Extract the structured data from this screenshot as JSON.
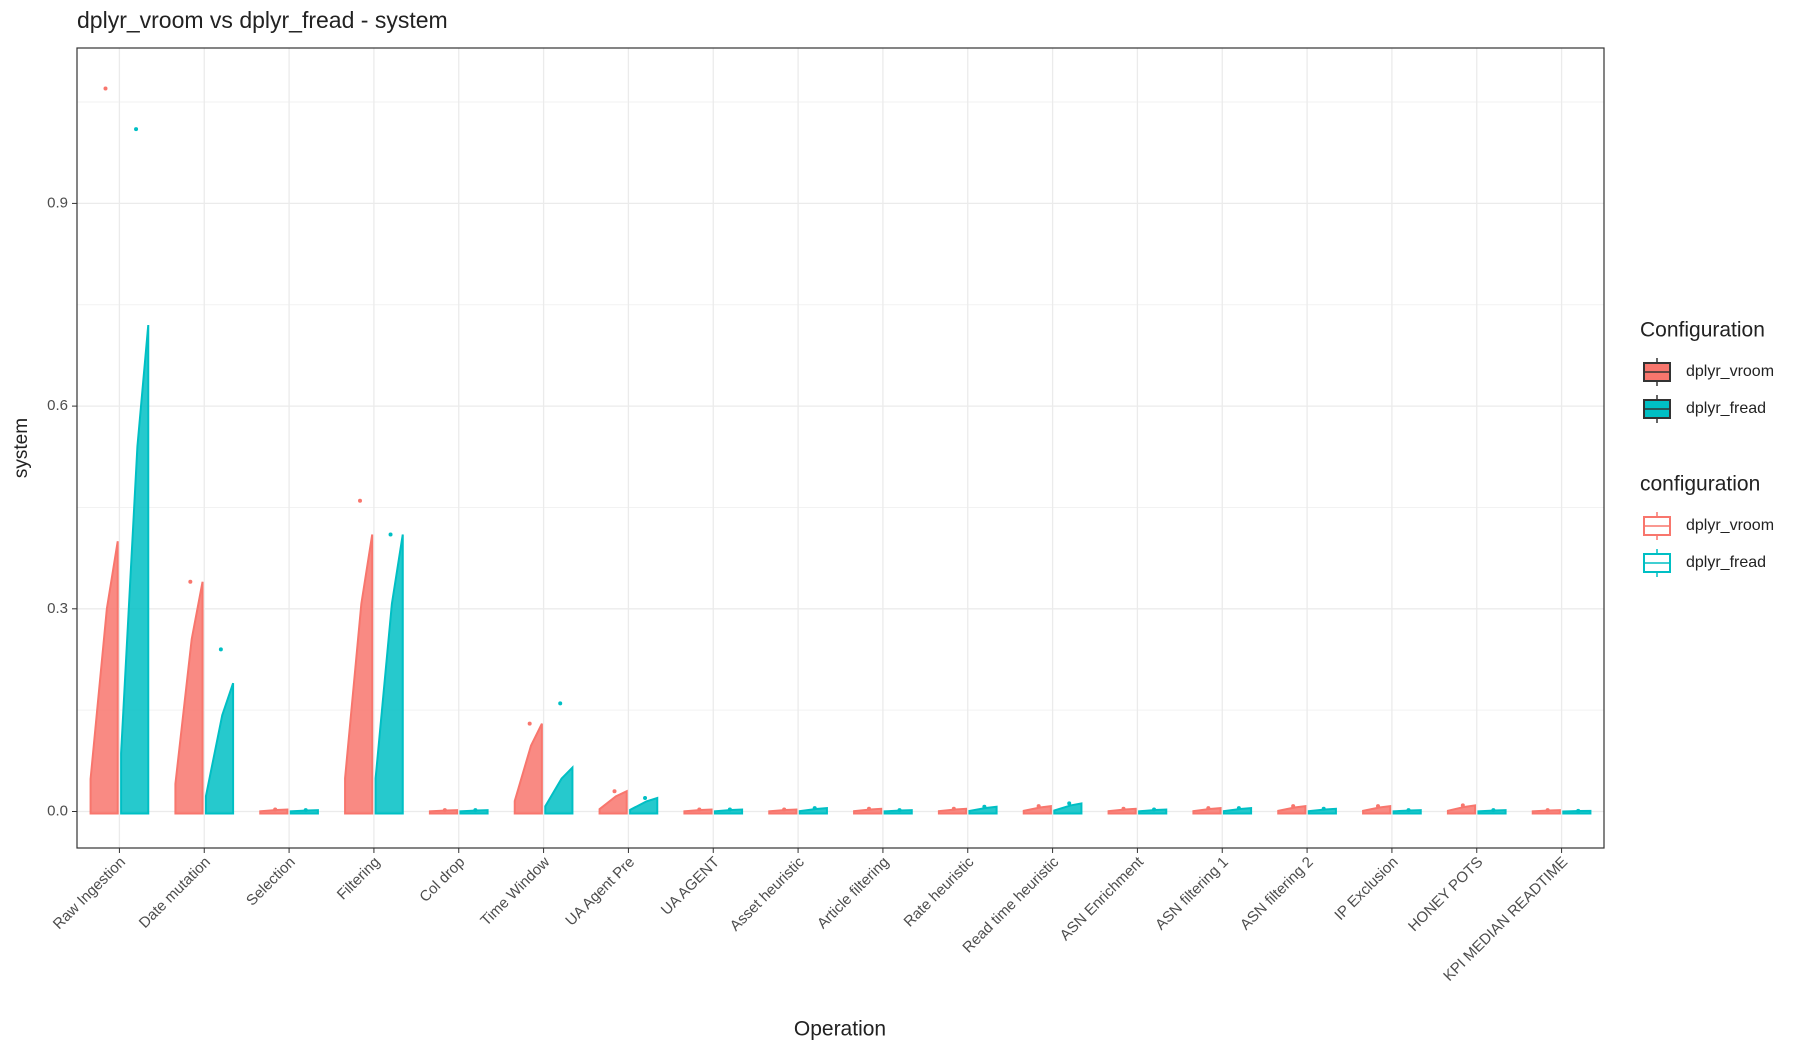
{
  "chart_data": {
    "type": "range",
    "title": "dplyr_vroom vs dplyr_fread - system",
    "x_label": "Operation",
    "y_label": "system",
    "categories": [
      "Raw Ingestion",
      "Date mutation",
      "Selection",
      "Filtering",
      "Col drop",
      "Time Window",
      "UA Agent Pre",
      "UA AGENT",
      "Asset heuristic",
      "Article filtering",
      "Rate heuristic",
      "Read time heuristic",
      "ASN Enrichment",
      "ASN filtering 1",
      "ASN filtering 2",
      "IP Exclusion",
      "HONEY POTS",
      "KPI MEDIAN READTIME"
    ],
    "series": [
      {
        "name": "dplyr_vroom",
        "color": "#F8766D",
        "values": [
          0.4,
          0.34,
          0.003,
          0.41,
          0.002,
          0.13,
          0.03,
          0.003,
          0.003,
          0.004,
          0.004,
          0.008,
          0.004,
          0.005,
          0.008,
          0.008,
          0.009,
          0.002
        ],
        "max": [
          1.07,
          0.34,
          0.003,
          0.46,
          0.002,
          0.13,
          0.03,
          0.003,
          0.003,
          0.004,
          0.004,
          0.008,
          0.004,
          0.005,
          0.008,
          0.008,
          0.009,
          0.002
        ]
      },
      {
        "name": "dplyr_fread",
        "color": "#00BFC4",
        "values": [
          0.72,
          0.19,
          0.002,
          0.41,
          0.002,
          0.065,
          0.02,
          0.003,
          0.005,
          0.002,
          0.007,
          0.012,
          0.003,
          0.005,
          0.004,
          0.002,
          0.002,
          0.001
        ],
        "max": [
          1.01,
          0.24,
          0.002,
          0.41,
          0.002,
          0.16,
          0.02,
          0.003,
          0.005,
          0.002,
          0.007,
          0.012,
          0.003,
          0.005,
          0.004,
          0.002,
          0.002,
          0.001
        ]
      }
    ],
    "ylim": [
      -0.054,
      1.13
    ],
    "yticks": [
      {
        "value": 0,
        "label": "0.0"
      },
      {
        "value": 0.3,
        "label": "0.3"
      },
      {
        "value": 0.6,
        "label": "0.6"
      },
      {
        "value": 0.9,
        "label": "0.9"
      }
    ],
    "grid": true,
    "legend_titles": [
      "Configuration",
      "configuration"
    ]
  }
}
